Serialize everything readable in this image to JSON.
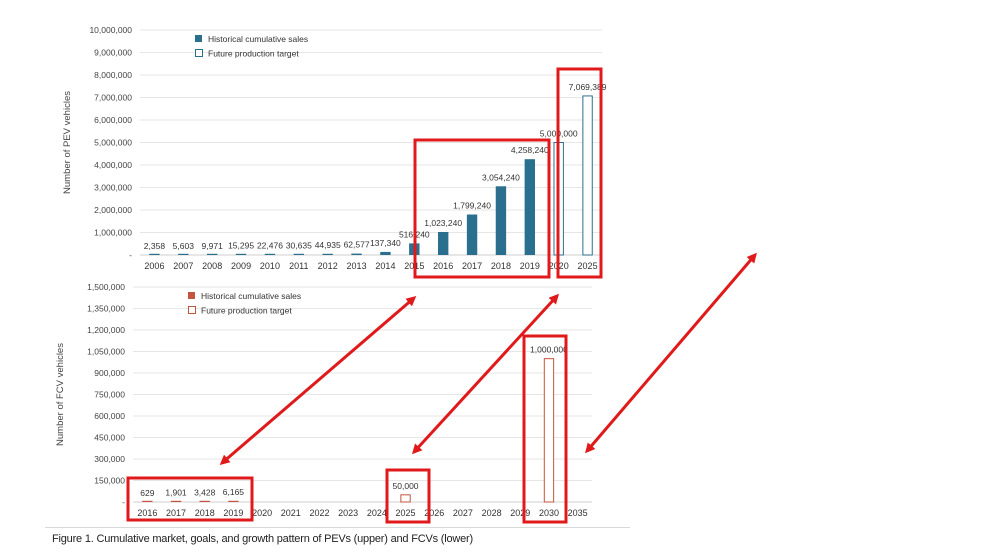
{
  "charts": {
    "upper": {
      "ylabel": "Number of PEV vehicles",
      "legend": [
        "Historical cumulative sales",
        "Future production target"
      ],
      "ytick_labels": [
        "-",
        "1,000,000",
        "2,000,000",
        "3,000,000",
        "4,000,000",
        "5,000,000",
        "6,000,000",
        "7,000,000",
        "8,000,000",
        "9,000,000",
        "10,000,000"
      ]
    },
    "lower": {
      "ylabel": "Number of FCV vehicles",
      "legend": [
        "Historical cumulative sales",
        "Future production target"
      ],
      "ytick_labels": [
        "-",
        "150,000",
        "300,000",
        "450,000",
        "600,000",
        "750,000",
        "900,000",
        "1,050,000",
        "1,200,000",
        "1,350,000",
        "1,500,000"
      ]
    }
  },
  "caption": "Figure 1. Cumulative market, goals, and growth pattern of PEVs (upper) and FCVs (lower)",
  "colors": {
    "pev_bar": "#2b6f8e",
    "fcv_bar": "#c4533f",
    "highlight": "#e0191b",
    "grid": "#e6e6e6"
  },
  "chart_data": [
    {
      "type": "bar",
      "ylabel": "Number of PEV vehicles",
      "ylim": [
        0,
        10000000
      ],
      "grid": true,
      "legend_position": "top-left",
      "categories": [
        "2006",
        "2007",
        "2008",
        "2009",
        "2010",
        "2011",
        "2012",
        "2013",
        "2014",
        "2015",
        "2016",
        "2017",
        "2018",
        "2019",
        "2020",
        "2025"
      ],
      "series": [
        {
          "name": "Historical cumulative sales",
          "style": "filled",
          "values": [
            2358,
            5603,
            9971,
            15295,
            22476,
            30635,
            44935,
            62577,
            137340,
            516240,
            1023240,
            1799240,
            3054240,
            4258240,
            null,
            null
          ]
        },
        {
          "name": "Future production target",
          "style": "outline",
          "values": [
            null,
            null,
            null,
            null,
            null,
            null,
            null,
            null,
            null,
            null,
            null,
            null,
            null,
            null,
            5000000,
            7069389
          ]
        }
      ],
      "data_labels": [
        "2,358",
        "5,603",
        "9,971",
        "15,295",
        "22,476",
        "30,635",
        "44,935",
        "62,577",
        "137,340",
        "516,240",
        "1,023,240",
        "1,799,240",
        "3,054,240",
        "4,258,240",
        "5,000,000",
        "7,069,389"
      ]
    },
    {
      "type": "bar",
      "ylabel": "Number of FCV vehicles",
      "ylim": [
        0,
        1500000
      ],
      "grid": true,
      "legend_position": "top-left",
      "categories": [
        "2016",
        "2017",
        "2018",
        "2019",
        "2020",
        "2021",
        "2022",
        "2023",
        "2024",
        "2025",
        "2026",
        "2027",
        "2028",
        "2029",
        "2030",
        "2035"
      ],
      "series": [
        {
          "name": "Historical cumulative sales",
          "style": "filled",
          "values": [
            629,
            1901,
            3428,
            6165,
            null,
            null,
            null,
            null,
            null,
            null,
            null,
            null,
            null,
            null,
            null,
            null
          ]
        },
        {
          "name": "Future production target",
          "style": "outline",
          "values": [
            null,
            null,
            null,
            null,
            null,
            null,
            null,
            null,
            null,
            50000,
            null,
            null,
            null,
            null,
            1000000,
            null
          ]
        }
      ],
      "data_labels": [
        "629",
        "1,901",
        "3,428",
        "6,165",
        null,
        null,
        null,
        null,
        null,
        "50,000",
        null,
        null,
        null,
        null,
        "1,000,000",
        null
      ]
    }
  ]
}
